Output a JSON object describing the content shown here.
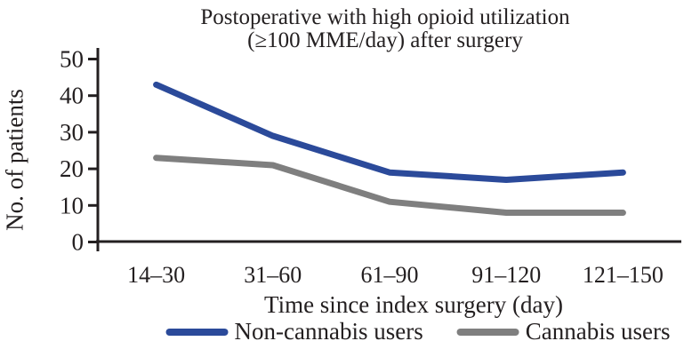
{
  "chart_data": {
    "type": "line",
    "title_line1": "Postoperative with high opioid utilization",
    "title_line2": "(≥100 MME/day) after surgery",
    "xlabel": "Time since index surgery (day)",
    "ylabel": "No. of patients",
    "categories": [
      "14–30",
      "31–60",
      "61–90",
      "91–120",
      "121–150"
    ],
    "series": [
      {
        "name": "Non-cannabis users",
        "color": "#2b4a9a",
        "values": [
          43,
          29,
          19,
          17,
          19
        ]
      },
      {
        "name": "Cannabis users",
        "color": "#7f7f7f",
        "values": [
          23,
          21,
          11,
          8,
          8
        ]
      }
    ],
    "ylim": [
      0,
      50
    ],
    "yticks": [
      0,
      10,
      20,
      30,
      40,
      50
    ],
    "grid": false,
    "legend_position": "bottom",
    "axis_color": "#231f20",
    "text_color": "#231f20"
  }
}
